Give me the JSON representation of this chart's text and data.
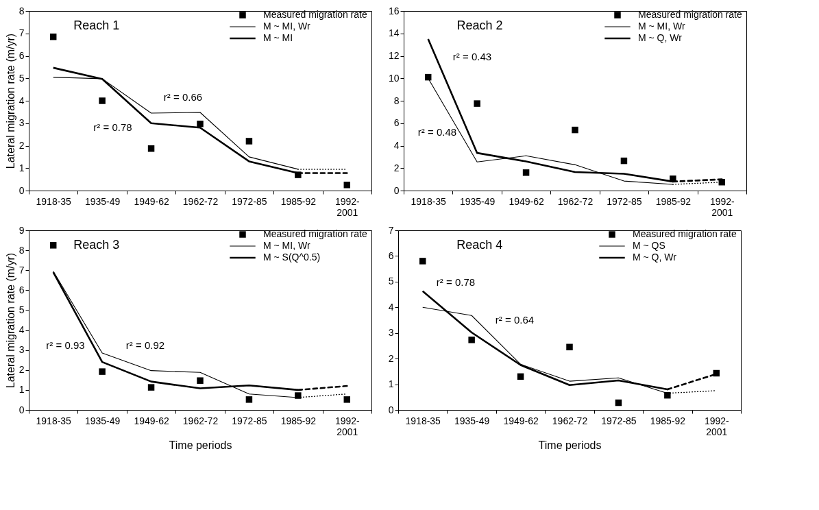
{
  "chart_data": [
    {
      "type": "line",
      "title": "Reach 1",
      "ylabel": "Lateral migration rate (m/yr)",
      "categories": [
        "1918-35",
        "1935-49",
        "1949-62",
        "1962-72",
        "1972-85",
        "1985-92",
        "1992-2001"
      ],
      "ylim": [
        0,
        8
      ],
      "yticks": [
        0,
        1,
        2,
        3,
        4,
        5,
        6,
        7,
        8
      ],
      "legend": "top right",
      "annotations": [
        "r² = 0.66",
        "r² = 0.78"
      ],
      "series": [
        {
          "name": "Measured migration rate",
          "type": "scatter",
          "marker": "square",
          "color": "#000000",
          "values": [
            6.85,
            4.0,
            1.87,
            2.97,
            2.2,
            0.7,
            0.25
          ]
        },
        {
          "name": "M ~ MI, Wr",
          "type": "line",
          "color": "#000000",
          "values": [
            5.05,
            4.98,
            3.45,
            3.48,
            1.5,
            0.95,
            null
          ]
        },
        {
          "name": "M ~ MI",
          "type": "line",
          "color": "#000000",
          "values": [
            5.47,
            4.97,
            3.0,
            2.8,
            1.3,
            0.78,
            null
          ]
        },
        {
          "type": "line",
          "line_style": "dotted",
          "color": "#000000",
          "values": [
            null,
            null,
            null,
            null,
            null,
            0.95,
            0.95
          ]
        },
        {
          "type": "line",
          "line_style": "dashed",
          "color": "#000000",
          "values": [
            null,
            null,
            null,
            null,
            null,
            0.78,
            0.78
          ]
        }
      ]
    },
    {
      "type": "line",
      "title": "Reach 2",
      "categories": [
        "1918-35",
        "1935-49",
        "1949-62",
        "1962-72",
        "1972-85",
        "1985-92",
        "1992-2001"
      ],
      "ylim": [
        0,
        16
      ],
      "yticks": [
        0,
        2,
        4,
        6,
        8,
        10,
        12,
        14,
        16
      ],
      "legend": "top right",
      "annotations": [
        "r² = 0.43",
        "r² = 0.48"
      ],
      "series": [
        {
          "name": "Measured migration rate",
          "type": "scatter",
          "marker": "square",
          "color": "#000000",
          "values": [
            10.1,
            7.75,
            1.6,
            5.4,
            2.65,
            1.05,
            0.75
          ]
        },
        {
          "name": "M ~  MI, Wr",
          "type": "line",
          "color": "#000000",
          "values": [
            10.0,
            2.55,
            3.1,
            2.3,
            0.85,
            0.55,
            null
          ]
        },
        {
          "name": "M ~  Q, Wr",
          "type": "line",
          "color": "#000000",
          "values": [
            13.5,
            3.35,
            2.6,
            1.65,
            1.5,
            0.8,
            null
          ]
        },
        {
          "type": "line",
          "line_style": "dotted",
          "color": "#000000",
          "values": [
            null,
            null,
            null,
            null,
            null,
            0.55,
            0.75
          ]
        },
        {
          "type": "line",
          "line_style": "dashed",
          "color": "#000000",
          "values": [
            null,
            null,
            null,
            null,
            null,
            0.8,
            1.0
          ]
        }
      ]
    },
    {
      "type": "line",
      "title": "Reach 3",
      "xlabel": "Time periods",
      "ylabel": "Lateral migration rate (m/yr)",
      "categories": [
        "1918-35",
        "1935-49",
        "1949-62",
        "1962-72",
        "1972-85",
        "1985-92",
        "1992-2001"
      ],
      "ylim": [
        0,
        9
      ],
      "yticks": [
        0,
        1,
        2,
        3,
        4,
        5,
        6,
        7,
        8,
        9
      ],
      "legend": "top right",
      "annotations": [
        "r² = 0.93",
        "r² = 0.92"
      ],
      "series": [
        {
          "name": "Measured migration rate",
          "type": "scatter",
          "marker": "square",
          "color": "#000000",
          "values": [
            8.25,
            1.92,
            1.13,
            1.47,
            0.52,
            0.72,
            0.52
          ]
        },
        {
          "name": "M ~ MI, Wr",
          "type": "line",
          "color": "#000000",
          "values": [
            6.95,
            2.85,
            1.97,
            1.88,
            0.8,
            0.62,
            null
          ]
        },
        {
          "name": "M ~ S(Q^0.5)",
          "type": "line",
          "color": "#000000",
          "values": [
            6.9,
            2.4,
            1.42,
            1.08,
            1.23,
            1.0,
            null
          ]
        },
        {
          "type": "line",
          "line_style": "dotted",
          "color": "#000000",
          "values": [
            null,
            null,
            null,
            null,
            null,
            0.62,
            0.8
          ]
        },
        {
          "type": "line",
          "line_style": "dashed",
          "color": "#000000",
          "values": [
            null,
            null,
            null,
            null,
            null,
            1.0,
            1.2
          ]
        }
      ]
    },
    {
      "type": "line",
      "title": "Reach 4",
      "xlabel": "Time periods",
      "categories": [
        "1918-35",
        "1935-49",
        "1949-62",
        "1962-72",
        "1972-85",
        "1985-92",
        "1992-2001"
      ],
      "ylim": [
        0,
        7
      ],
      "yticks": [
        0,
        1,
        2,
        3,
        4,
        5,
        6,
        7
      ],
      "legend": "top right",
      "annotations": [
        "r² = 0.78",
        "r² = 0.64"
      ],
      "series": [
        {
          "name": "Measured migration rate",
          "type": "scatter",
          "marker": "square",
          "color": "#000000",
          "values": [
            5.8,
            2.73,
            1.3,
            2.45,
            0.28,
            0.57,
            1.43
          ]
        },
        {
          "name": "M ~ QS",
          "type": "line",
          "color": "#000000",
          "values": [
            4.0,
            3.68,
            1.78,
            1.12,
            1.25,
            0.65,
            null
          ]
        },
        {
          "name": "M ~ Q, Wr",
          "type": "line",
          "color": "#000000",
          "values": [
            4.63,
            3.02,
            1.75,
            0.97,
            1.15,
            0.8,
            null
          ]
        },
        {
          "type": "line",
          "line_style": "dotted",
          "color": "#000000",
          "values": [
            null,
            null,
            null,
            null,
            null,
            0.65,
            0.75
          ]
        },
        {
          "type": "line",
          "line_style": "dashed",
          "color": "#000000",
          "values": [
            null,
            null,
            null,
            null,
            null,
            0.8,
            1.4
          ]
        }
      ]
    }
  ]
}
